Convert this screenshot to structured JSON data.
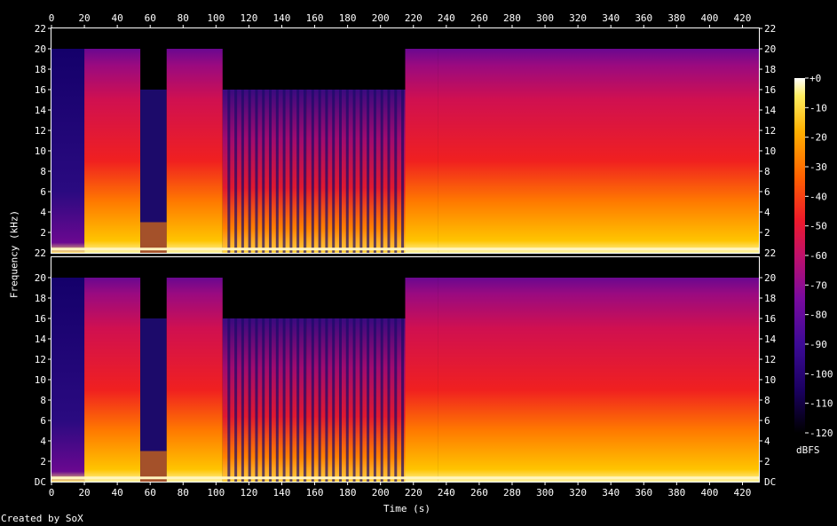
{
  "credit": "Created by SoX",
  "chart_data": {
    "type": "heatmap",
    "xlabel": "Time (s)",
    "ylabel": "Frequency (kHz)",
    "x_ticks": [
      "0",
      "20",
      "40",
      "60",
      "80",
      "100",
      "120",
      "140",
      "160",
      "180",
      "200",
      "220",
      "240",
      "260",
      "280",
      "300",
      "320",
      "340",
      "360",
      "380",
      "400",
      "420"
    ],
    "xlim": [
      0,
      430
    ],
    "channels": [
      {
        "y_ticks": [
          "2",
          "4",
          "6",
          "8",
          "10",
          "12",
          "14",
          "16",
          "18",
          "20",
          "22"
        ],
        "bottom_tick": "22"
      },
      {
        "y_ticks": [
          "2",
          "4",
          "6",
          "8",
          "10",
          "12",
          "14",
          "16",
          "18",
          "20",
          "22"
        ],
        "bottom_tick": "DC"
      }
    ],
    "ylim": [
      0,
      22
    ],
    "colorbar": {
      "label": "dBFS",
      "ticks": [
        "+0",
        "-10",
        "-20",
        "-30",
        "-40",
        "-50",
        "-60",
        "-70",
        "-80",
        "-90",
        "-100",
        "-110",
        "-120"
      ],
      "range": [
        -120,
        0
      ]
    },
    "segments": [
      {
        "start": 0,
        "end": 20,
        "cutoff_khz": 20,
        "level": "quiet"
      },
      {
        "start": 20,
        "end": 54,
        "cutoff_khz": 20,
        "level": "loud"
      },
      {
        "start": 54,
        "end": 70,
        "cutoff_khz": 16,
        "level": "fade"
      },
      {
        "start": 70,
        "end": 104,
        "cutoff_khz": 20,
        "level": "loud"
      },
      {
        "start": 104,
        "end": 155,
        "cutoff_khz": 16,
        "level": "pulsed"
      },
      {
        "start": 155,
        "end": 215,
        "cutoff_khz": 16,
        "level": "pulsed"
      },
      {
        "start": 215,
        "end": 235,
        "cutoff_khz": 20,
        "level": "loud"
      },
      {
        "start": 235,
        "end": 430,
        "cutoff_khz": 20,
        "level": "loud"
      }
    ],
    "colors": {
      "background": "#000000",
      "text": "#ffffff",
      "axis": "#ffffff"
    }
  }
}
